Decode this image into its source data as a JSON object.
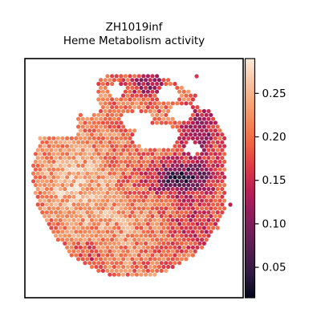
{
  "chart_data": {
    "type": "heatmap",
    "title": "ZH1019inf",
    "subtitle": "Heme Metabolism activity",
    "xlabel": "",
    "ylabel": "",
    "grid": false,
    "colormap": "rocket",
    "colorbar": {
      "range": [
        0.015,
        0.29
      ],
      "ticks": [
        0.05,
        0.1,
        0.15,
        0.2,
        0.25
      ],
      "tick_labels": [
        "0.05",
        "0.10",
        "0.15",
        "0.20",
        "0.25"
      ],
      "placement": "right"
    },
    "colors": [
      "#03051a",
      "#2b1a3e",
      "#4c1d4b",
      "#701f57",
      "#951c5b",
      "#bc1f53",
      "#de3a46",
      "#f06043",
      "#f48556",
      "#f6a77a",
      "#f7c7a8",
      "#faebdd"
    ],
    "value_description": "Spatial spots in a roughly circular tissue section; higher activity (~0.20–0.28) in the left and lower-center regions, lowest activity (~0.02–0.10) in a dark band on the right-center and upper-right, with gaps (holes) in the upper-center area."
  }
}
